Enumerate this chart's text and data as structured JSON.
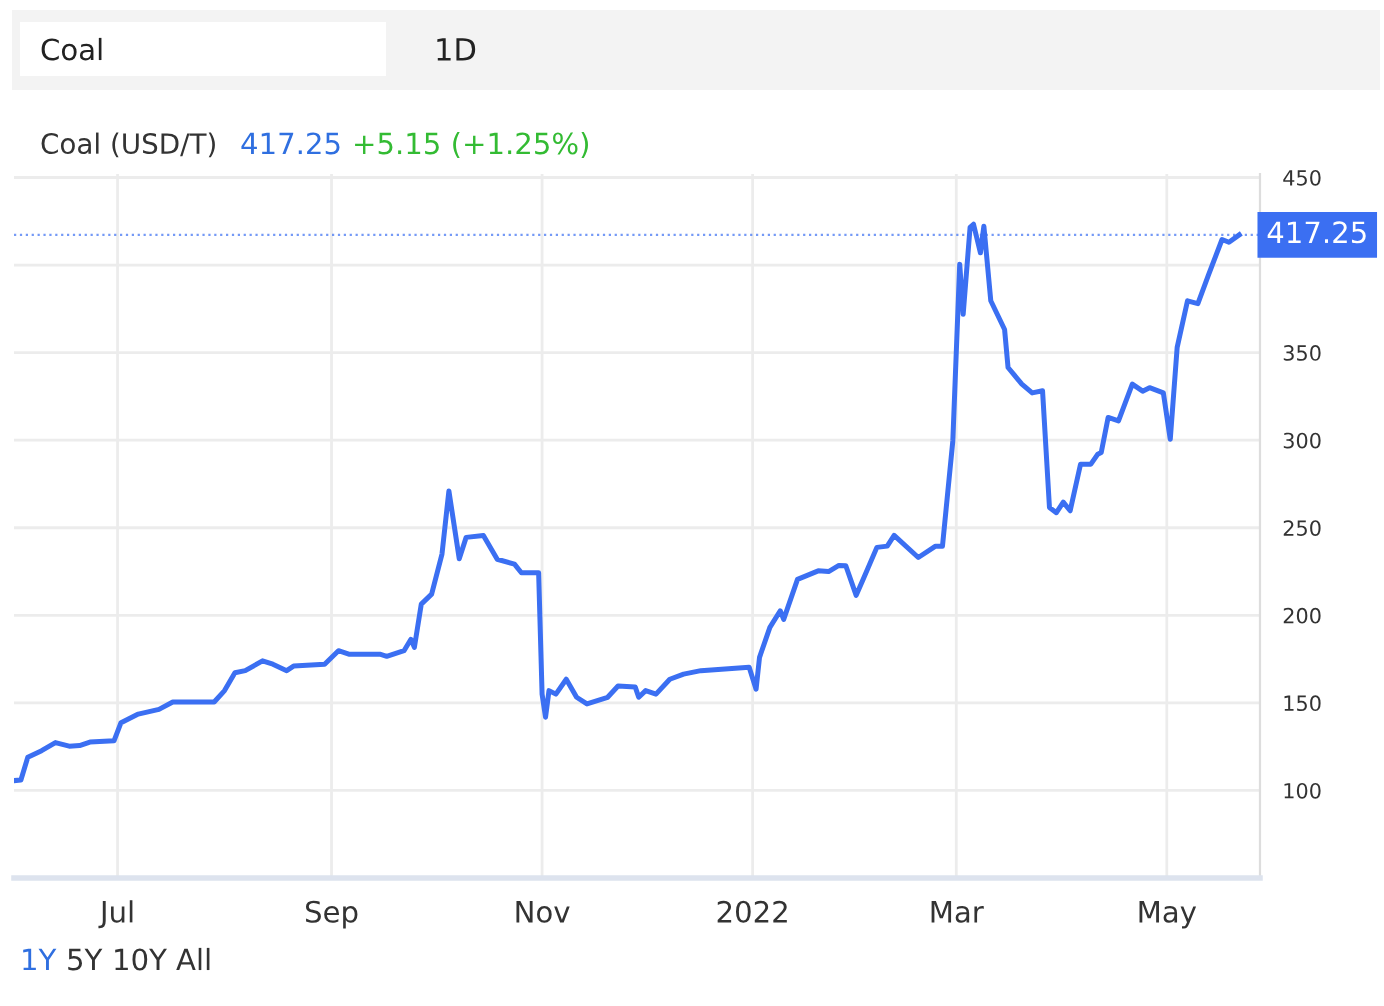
{
  "chart_data": {
    "type": "line",
    "title": "Coal (USD/T)",
    "annotations": [
      "417.25",
      "+5.15 (+1.25%)",
      "Coal",
      "1D",
      "1Y",
      "5Y",
      "10Y",
      "All"
    ],
    "x": [
      "2021-06-01",
      "2021-06-03",
      "2021-06-05",
      "2021-06-09",
      "2021-06-13",
      "2021-06-17",
      "2021-06-20",
      "2021-06-23",
      "2021-06-30",
      "2021-07-02",
      "2021-07-07",
      "2021-07-13",
      "2021-07-17",
      "2021-07-29",
      "2021-08-01",
      "2021-08-04",
      "2021-08-07",
      "2021-08-12",
      "2021-08-15",
      "2021-08-19",
      "2021-08-21",
      "2021-08-30",
      "2021-09-03",
      "2021-09-06",
      "2021-09-15",
      "2021-09-17",
      "2021-09-22",
      "2021-09-24",
      "2021-09-25",
      "2021-09-27",
      "2021-09-30",
      "2021-10-03",
      "2021-10-05",
      "2021-10-08",
      "2021-10-10",
      "2021-10-15",
      "2021-10-19",
      "2021-10-24",
      "2021-10-26",
      "2021-10-31",
      "2021-11-01",
      "2021-11-02",
      "2021-11-03",
      "2021-11-05",
      "2021-11-08",
      "2021-11-11",
      "2021-11-14",
      "2021-11-20",
      "2021-11-23",
      "2021-11-28",
      "2021-11-29",
      "2021-12-01",
      "2021-12-04",
      "2021-12-08",
      "2021-12-12",
      "2021-12-17",
      "2021-12-25",
      "2021-12-31",
      "2022-01-02",
      "2022-01-03",
      "2022-01-06",
      "2022-01-09",
      "2022-01-10",
      "2022-01-14",
      "2022-01-20",
      "2022-01-23",
      "2022-01-26",
      "2022-01-28",
      "2022-01-31",
      "2022-02-02",
      "2022-02-06",
      "2022-02-09",
      "2022-02-11",
      "2022-02-18",
      "2022-02-23",
      "2022-02-25",
      "2022-02-28",
      "2022-03-02",
      "2022-03-03",
      "2022-03-05",
      "2022-03-06",
      "2022-03-08",
      "2022-03-09",
      "2022-03-11",
      "2022-03-15",
      "2022-03-16",
      "2022-03-20",
      "2022-03-23",
      "2022-03-26",
      "2022-03-28",
      "2022-03-30",
      "2022-04-01",
      "2022-04-03",
      "2022-04-06",
      "2022-04-09",
      "2022-04-11",
      "2022-04-12",
      "2022-04-14",
      "2022-04-17",
      "2022-04-21",
      "2022-04-24",
      "2022-04-26",
      "2022-04-30",
      "2022-05-02",
      "2022-05-04",
      "2022-05-07",
      "2022-05-10",
      "2022-05-13",
      "2022-05-17",
      "2022-05-19",
      "2022-05-22"
    ],
    "series": [
      {
        "color": "#3b6ff2",
        "values": [
          105.6,
          106,
          119,
          122.7,
          127.3,
          125.3,
          125.6,
          127.6,
          128.4,
          138.7,
          143.6,
          146.3,
          150.5,
          150.5,
          157,
          167.2,
          168.4,
          174,
          172.1,
          168.4,
          171,
          172.1,
          179.8,
          177.8,
          177.8,
          176.6,
          179.8,
          186.3,
          181.7,
          206.4,
          212.1,
          235,
          271,
          232.3,
          244.5,
          245.6,
          232,
          229.2,
          224.3,
          224.3,
          155,
          141.8,
          157,
          155,
          163.5,
          153.2,
          149.4,
          153.2,
          159.6,
          159,
          153.2,
          157,
          155,
          163.5,
          166.4,
          168.4,
          169.5,
          170.3,
          157.8,
          176,
          193.1,
          202.6,
          197.7,
          220.5,
          225.4,
          225,
          228.5,
          228.3,
          211.4,
          220.5,
          238.8,
          239.5,
          245.6,
          233,
          239.5,
          239.5,
          299.6,
          400.5,
          371.9,
          421.5,
          423.3,
          407,
          422.2,
          379.6,
          363.2,
          341.5,
          332,
          327,
          328.2,
          261.6,
          258.6,
          264.6,
          259.7,
          286.3,
          286.3,
          292,
          293,
          313,
          311,
          332,
          328,
          330,
          327,
          300.5,
          353,
          379.6,
          378,
          394,
          414.6,
          413,
          417.25
        ]
      }
    ],
    "xlim": [
      "2021-06-01",
      "2022-05-28"
    ],
    "xticks": [
      {
        "value": "2021-07-01",
        "label": "Jul"
      },
      {
        "value": "2021-09-01",
        "label": "Sep"
      },
      {
        "value": "2021-11-01",
        "label": "Nov"
      },
      {
        "value": "2022-01-01",
        "label": "2022"
      },
      {
        "value": "2022-03-01",
        "label": "Mar"
      },
      {
        "value": "2022-05-01",
        "label": "May"
      }
    ],
    "ylim": [
      50,
      452
    ],
    "yticks": [
      100,
      150,
      200,
      250,
      300,
      350,
      {
        "value": 400,
        "label": null
      },
      450
    ],
    "ref_lines": [
      {
        "axis": "y",
        "value": 417.25,
        "label": "417.25",
        "color": "#3b6ff2",
        "line_style": "dotted"
      }
    ],
    "grid": true,
    "legend": false,
    "marker": "none",
    "line_style": "solid"
  }
}
